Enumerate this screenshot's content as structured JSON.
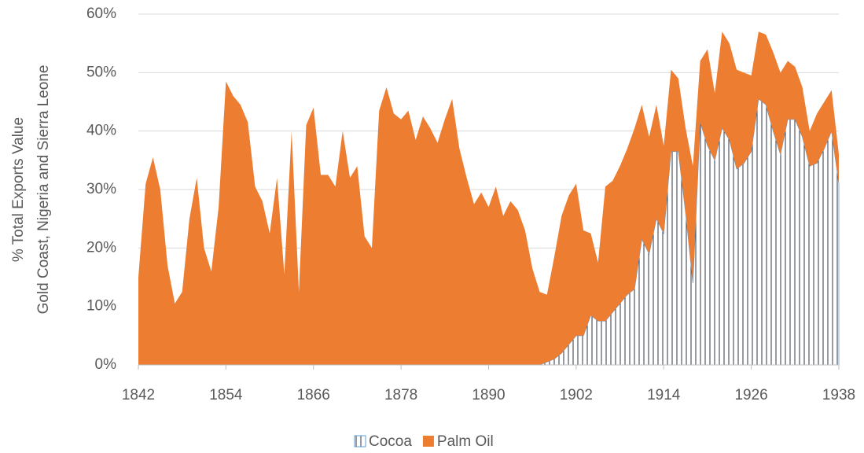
{
  "chart_data": {
    "type": "stacked-area",
    "ylabel": [
      "% Total Exports Value",
      "Gold Coast, Nigeria and Sierra Leone"
    ],
    "x": [
      1842,
      1843,
      1844,
      1845,
      1846,
      1847,
      1848,
      1849,
      1850,
      1851,
      1852,
      1853,
      1854,
      1855,
      1856,
      1857,
      1858,
      1859,
      1860,
      1861,
      1862,
      1863,
      1864,
      1865,
      1866,
      1867,
      1868,
      1869,
      1870,
      1871,
      1872,
      1873,
      1874,
      1875,
      1876,
      1877,
      1878,
      1879,
      1880,
      1881,
      1882,
      1883,
      1884,
      1885,
      1886,
      1887,
      1888,
      1889,
      1890,
      1891,
      1892,
      1893,
      1894,
      1895,
      1896,
      1897,
      1898,
      1899,
      1900,
      1901,
      1902,
      1903,
      1904,
      1905,
      1906,
      1907,
      1908,
      1909,
      1910,
      1911,
      1912,
      1913,
      1914,
      1915,
      1916,
      1917,
      1918,
      1919,
      1920,
      1921,
      1922,
      1923,
      1924,
      1925,
      1926,
      1927,
      1928,
      1929,
      1930,
      1931,
      1932,
      1933,
      1934,
      1935,
      1936,
      1937,
      1938
    ],
    "series": [
      {
        "name": "Cocoa",
        "color": "#2f3640",
        "hatch": "vertical",
        "values": [
          0,
          0,
          0,
          0,
          0,
          0,
          0,
          0,
          0,
          0,
          0,
          0,
          0,
          0,
          0,
          0,
          0,
          0,
          0,
          0,
          0,
          0,
          0,
          0,
          0,
          0,
          0,
          0,
          0,
          0,
          0,
          0,
          0,
          0,
          0,
          0,
          0,
          0,
          0,
          0,
          0,
          0,
          0,
          0,
          0,
          0,
          0,
          0,
          0,
          0,
          0,
          0,
          0,
          0,
          0,
          0,
          0.5,
          1,
          2,
          3.5,
          5,
          5,
          8.5,
          7.5,
          7.5,
          9,
          10.5,
          12,
          13,
          21.5,
          19,
          25,
          22.5,
          36.5,
          36.5,
          26,
          14,
          41.5,
          37.5,
          35,
          40.5,
          38.5,
          33.5,
          34.5,
          36.5,
          45.5,
          44.5,
          40,
          36,
          42,
          42,
          39,
          34,
          34.5,
          37,
          40,
          31
        ]
      },
      {
        "name": "Palm Oil",
        "color": "#ed7d31",
        "values": [
          15,
          31,
          35.5,
          30,
          17,
          10.5,
          12.5,
          25,
          32,
          20,
          16,
          27,
          48.5,
          46,
          44.5,
          41.5,
          30.5,
          28,
          22.5,
          32,
          15.5,
          40,
          12.5,
          41,
          44,
          32.5,
          32.5,
          30.5,
          40,
          32,
          34,
          22,
          20,
          43.5,
          47.5,
          43,
          42,
          43.5,
          38.5,
          42.5,
          40.5,
          38,
          42,
          45.5,
          37,
          32,
          27.5,
          29.5,
          27,
          30.5,
          25.5,
          28,
          26.5,
          23,
          16.5,
          12.5,
          11.5,
          17.5,
          23.5,
          25.5,
          26,
          18,
          14,
          10,
          23,
          22.5,
          23.5,
          25,
          27.5,
          23,
          20,
          19.5,
          15,
          14,
          12.5,
          14.5,
          20,
          10.5,
          16.5,
          11.5,
          16.5,
          16.5,
          17,
          15.5,
          13,
          11.5,
          12,
          13.5,
          14,
          10,
          9,
          8.5,
          6,
          8.5,
          8,
          7,
          5
        ]
      }
    ],
    "xlim": [
      1842,
      1938
    ],
    "xticks": [
      1842,
      1854,
      1866,
      1878,
      1890,
      1902,
      1914,
      1926,
      1938
    ],
    "ylim": [
      0,
      60
    ],
    "yticks": [
      {
        "value": 0,
        "label": "0%"
      },
      {
        "value": 10,
        "label": "10%"
      },
      {
        "value": 20,
        "label": "20%"
      },
      {
        "value": 30,
        "label": "30%"
      },
      {
        "value": 40,
        "label": "40%"
      },
      {
        "value": 50,
        "label": "50%"
      },
      {
        "value": 60,
        "label": "60%"
      }
    ],
    "grid": true,
    "legend": "bottom"
  }
}
